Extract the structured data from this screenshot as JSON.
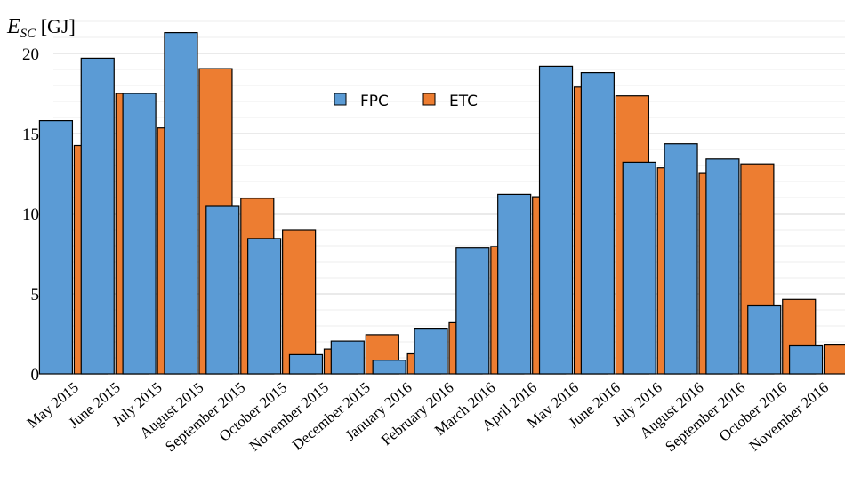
{
  "chart_data": {
    "type": "bar",
    "ylabel": {
      "main": "E",
      "sub": "SC",
      "unit": " [GJ]"
    },
    "ylim": [
      0,
      20
    ],
    "yticks": [
      0,
      5,
      10,
      15,
      20
    ],
    "grid": true,
    "minor_grid": true,
    "legend_position": "top-center",
    "categories": [
      "May 2015",
      "June 2015",
      "July 2015",
      "August 2015",
      "September 2015",
      "October 2015",
      "November 2015",
      "December 2015",
      "January 2016",
      "February 2016",
      "March 2016",
      "April 2016",
      "May 2016",
      "June 2016",
      "July 2016",
      "August 2016",
      "September 2016",
      "October 2016",
      "November 2016"
    ],
    "series": [
      {
        "name": "FPC",
        "color": "#5b9bd5",
        "values": [
          15.8,
          19.7,
          17.5,
          21.3,
          10.5,
          8.45,
          1.2,
          2.05,
          0.85,
          2.8,
          7.85,
          11.2,
          19.2,
          18.8,
          13.2,
          14.35,
          13.4,
          4.25,
          1.75
        ]
      },
      {
        "name": "ETC",
        "color": "#ed7d31",
        "values": [
          14.25,
          17.5,
          15.35,
          19.05,
          10.95,
          9.0,
          1.55,
          2.45,
          1.25,
          3.2,
          7.95,
          11.05,
          17.9,
          17.35,
          12.85,
          12.55,
          13.1,
          4.65,
          1.8
        ]
      }
    ]
  }
}
